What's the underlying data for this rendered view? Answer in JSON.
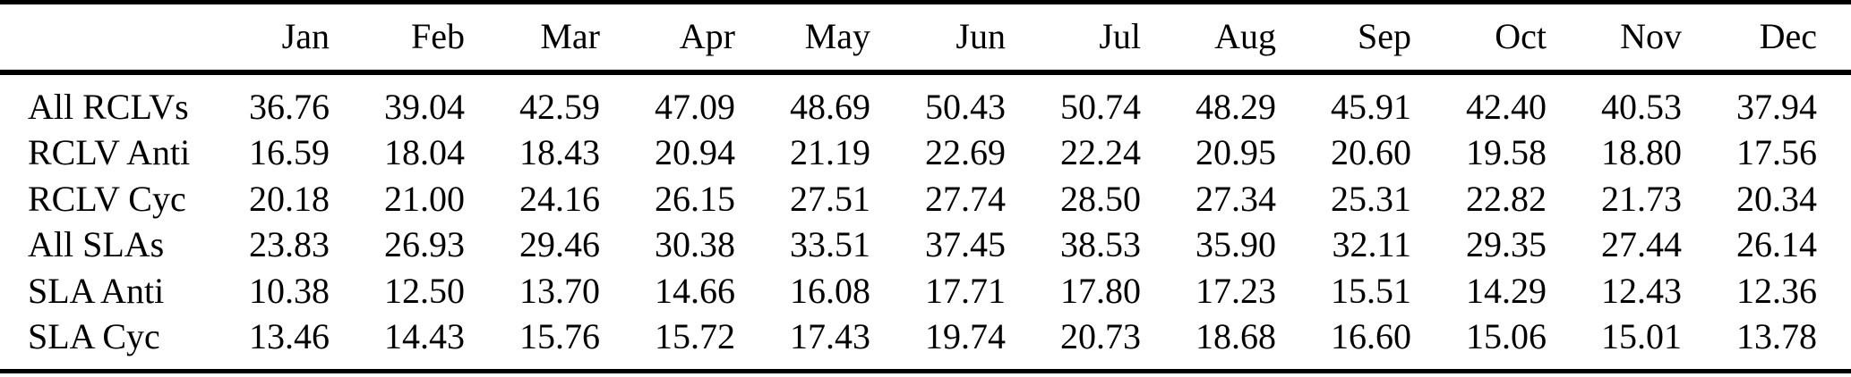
{
  "table": {
    "corner_label": "",
    "columns": [
      "Jan",
      "Feb",
      "Mar",
      "Apr",
      "May",
      "Jun",
      "Jul",
      "Aug",
      "Sep",
      "Oct",
      "Nov",
      "Dec"
    ],
    "rows": [
      {
        "label": "All RCLVs",
        "values": [
          "36.76",
          "39.04",
          "42.59",
          "47.09",
          "48.69",
          "50.43",
          "50.74",
          "48.29",
          "45.91",
          "42.40",
          "40.53",
          "37.94"
        ]
      },
      {
        "label": "RCLV Anti",
        "values": [
          "16.59",
          "18.04",
          "18.43",
          "20.94",
          "21.19",
          "22.69",
          "22.24",
          "20.95",
          "20.60",
          "19.58",
          "18.80",
          "17.56"
        ]
      },
      {
        "label": "RCLV Cyc",
        "values": [
          "20.18",
          "21.00",
          "24.16",
          "26.15",
          "27.51",
          "27.74",
          "28.50",
          "27.34",
          "25.31",
          "22.82",
          "21.73",
          "20.34"
        ]
      },
      {
        "label": "All SLAs",
        "values": [
          "23.83",
          "26.93",
          "29.46",
          "30.38",
          "33.51",
          "37.45",
          "38.53",
          "35.90",
          "32.11",
          "29.35",
          "27.44",
          "26.14"
        ]
      },
      {
        "label": "SLA Anti",
        "values": [
          "10.38",
          "12.50",
          "13.70",
          "14.66",
          "16.08",
          "17.71",
          "17.80",
          "17.23",
          "15.51",
          "14.29",
          "12.43",
          "12.36"
        ]
      },
      {
        "label": "SLA Cyc",
        "values": [
          "13.46",
          "14.43",
          "15.76",
          "15.72",
          "17.43",
          "19.74",
          "20.73",
          "18.68",
          "16.60",
          "15.06",
          "15.01",
          "13.78"
        ]
      }
    ]
  },
  "chart_data": {
    "type": "table",
    "categories": [
      "Jan",
      "Feb",
      "Mar",
      "Apr",
      "May",
      "Jun",
      "Jul",
      "Aug",
      "Sep",
      "Oct",
      "Nov",
      "Dec"
    ],
    "series": [
      {
        "name": "All RCLVs",
        "values": [
          36.76,
          39.04,
          42.59,
          47.09,
          48.69,
          50.43,
          50.74,
          48.29,
          45.91,
          42.4,
          40.53,
          37.94
        ]
      },
      {
        "name": "RCLV Anti",
        "values": [
          16.59,
          18.04,
          18.43,
          20.94,
          21.19,
          22.69,
          22.24,
          20.95,
          20.6,
          19.58,
          18.8,
          17.56
        ]
      },
      {
        "name": "RCLV Cyc",
        "values": [
          20.18,
          21.0,
          24.16,
          26.15,
          27.51,
          27.74,
          28.5,
          27.34,
          25.31,
          22.82,
          21.73,
          20.34
        ]
      },
      {
        "name": "All SLAs",
        "values": [
          23.83,
          26.93,
          29.46,
          30.38,
          33.51,
          37.45,
          38.53,
          35.9,
          32.11,
          29.35,
          27.44,
          26.14
        ]
      },
      {
        "name": "SLA Anti",
        "values": [
          10.38,
          12.5,
          13.7,
          14.66,
          16.08,
          17.71,
          17.8,
          17.23,
          15.51,
          14.29,
          12.43,
          12.36
        ]
      },
      {
        "name": "SLA Cyc",
        "values": [
          13.46,
          14.43,
          15.76,
          15.72,
          17.43,
          19.74,
          20.73,
          18.68,
          16.6,
          15.06,
          15.01,
          13.78
        ]
      }
    ],
    "title": "",
    "layout": {
      "grid": false,
      "rules": "top, below-header, bottom"
    }
  },
  "colors": {
    "text": "#000000",
    "rule": "#000000",
    "background": "#ffffff"
  }
}
